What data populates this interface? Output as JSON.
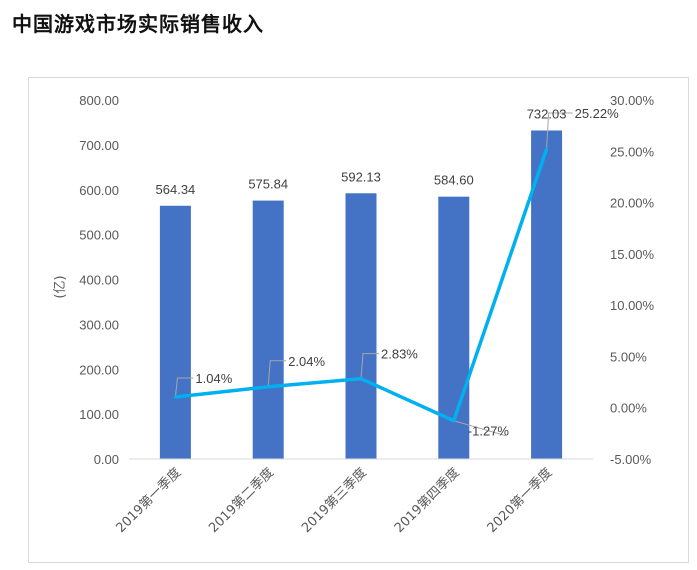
{
  "page": {
    "title": "中国游戏市场实际销售收入"
  },
  "chart_data": {
    "type": "bar",
    "title": "中国游戏市场实际销售收入",
    "categories": [
      "2019第一季度",
      "2019第二季度",
      "2019第三季度",
      "2019第四季度",
      "2020第一季度"
    ],
    "series": [
      {
        "name": "",
        "type": "bar",
        "axis": "left",
        "values": [
          564.34,
          575.84,
          592.13,
          584.6,
          732.03
        ],
        "labels": [
          "564.34",
          "575.84",
          "592.13",
          "584.60",
          "732.03"
        ],
        "color": "#4472C4"
      },
      {
        "name": "",
        "type": "line",
        "axis": "right",
        "values": [
          1.04,
          2.04,
          2.83,
          -1.27,
          25.22
        ],
        "labels": [
          "1.04%",
          "2.04%",
          "2.83%",
          "-1.27%",
          "25.22%"
        ],
        "color": "#00B0F0"
      }
    ],
    "ylabel": "(亿)",
    "ylim": [
      0,
      800
    ],
    "y_ticks": [
      "0.00",
      "100.00",
      "200.00",
      "300.00",
      "400.00",
      "500.00",
      "600.00",
      "700.00",
      "800.00"
    ],
    "y2lim": [
      -5,
      30
    ],
    "y2_ticks": [
      "-5.00%",
      "0.00%",
      "5.00%",
      "10.00%",
      "15.00%",
      "20.00%",
      "25.00%",
      "30.00%"
    ],
    "grid": false,
    "legend": "none"
  }
}
